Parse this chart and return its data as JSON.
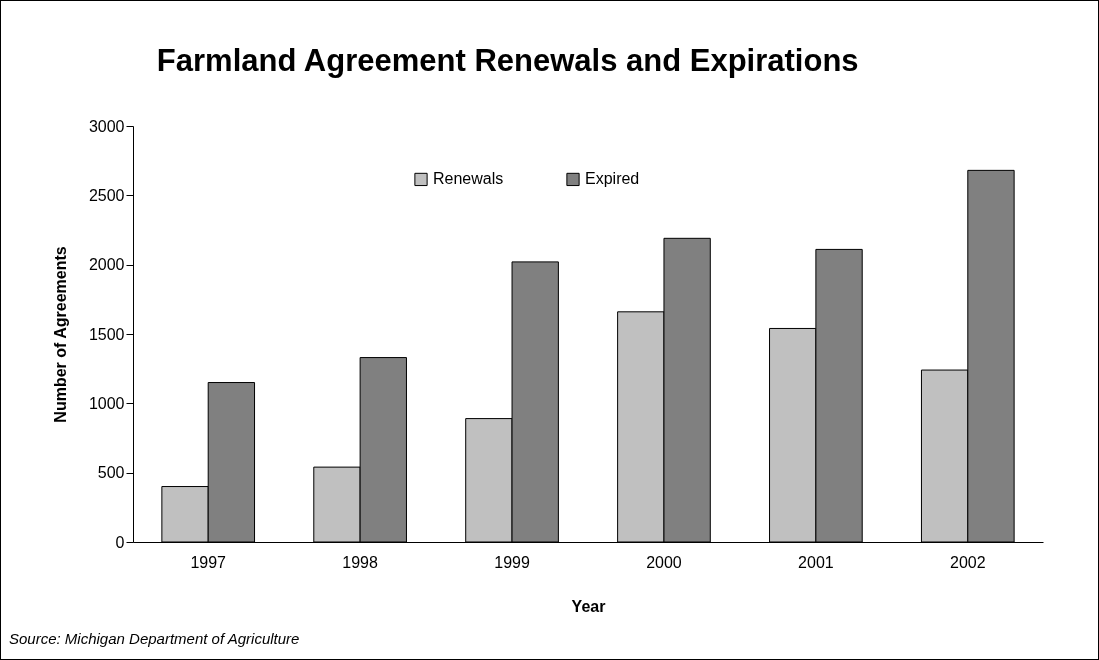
{
  "chart_data": {
    "type": "bar",
    "title": "Farmland Agreement Renewals and Expirations",
    "xlabel": "Year",
    "ylabel": "Number of Agreements",
    "categories": [
      "1997",
      "1998",
      "1999",
      "2000",
      "2001",
      "2002"
    ],
    "series": [
      {
        "name": "Renewals",
        "color": "#c0c0c0",
        "values": [
          400,
          540,
          890,
          1660,
          1540,
          1240
        ]
      },
      {
        "name": "Expired",
        "color": "#808080",
        "values": [
          1150,
          1330,
          2020,
          2190,
          2110,
          2680
        ]
      }
    ],
    "ylim": [
      0,
      3000
    ],
    "yticks": [
      0,
      500,
      1000,
      1500,
      2000,
      2500,
      3000
    ],
    "grid": false,
    "legend": "top",
    "annotations": [
      "Source: Michigan Department of Agriculture"
    ]
  }
}
